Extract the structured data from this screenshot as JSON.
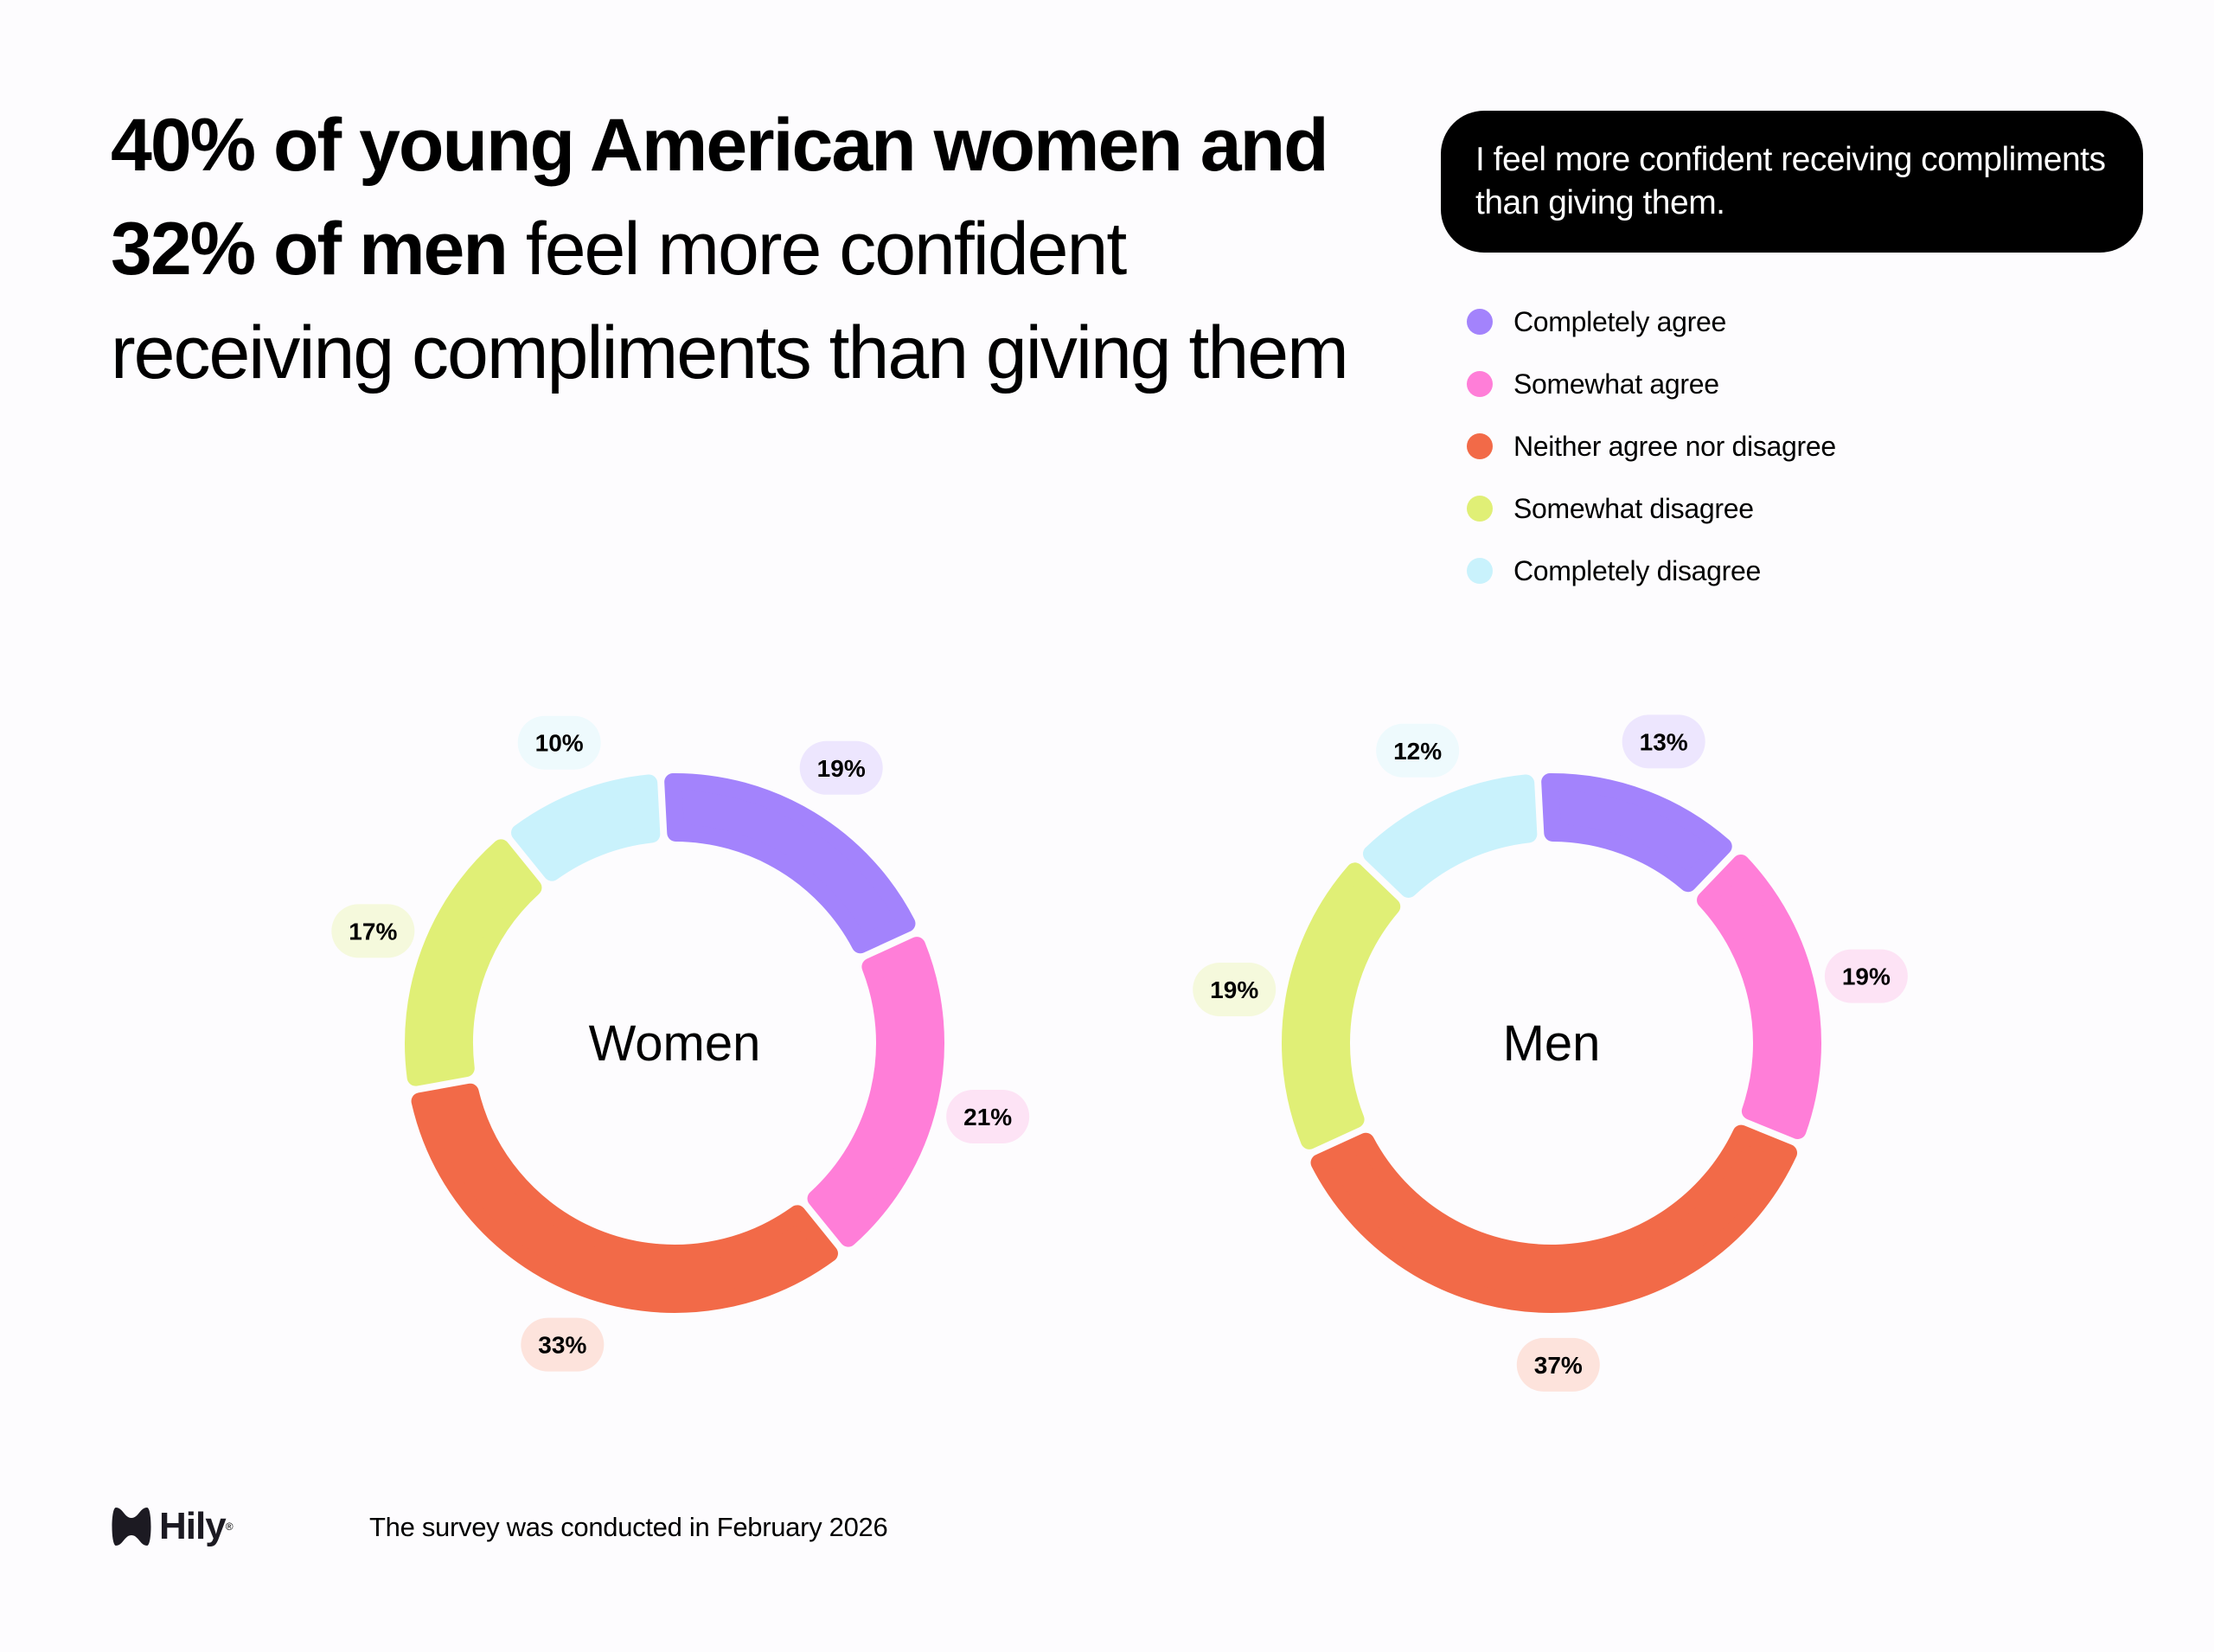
{
  "headline": {
    "bold": "40% of young American women and 32% of men",
    "regular": " feel more confident receiving compliments than giving them"
  },
  "question": "I feel more confident receiving compliments than giving them.",
  "legend": [
    {
      "label": "Completely agree",
      "color": "#a383fc"
    },
    {
      "label": "Somewhat agree",
      "color": "#ff7ed8"
    },
    {
      "label": "Neither agree nor disagree",
      "color": "#f26a48"
    },
    {
      "label": "Somewhat disagree",
      "color": "#e0ef76"
    },
    {
      "label": "Completely disagree",
      "color": "#c9f2fc"
    }
  ],
  "chart_data": [
    {
      "type": "pie",
      "title": "Women",
      "categories": [
        "Completely agree",
        "Somewhat agree",
        "Neither agree nor disagree",
        "Somewhat disagree",
        "Completely disagree"
      ],
      "values": [
        19,
        21,
        33,
        17,
        10
      ],
      "labels": [
        "19%",
        "21%",
        "33%",
        "17%",
        "10%"
      ]
    },
    {
      "type": "pie",
      "title": "Men",
      "categories": [
        "Completely agree",
        "Somewhat agree",
        "Neither agree nor disagree",
        "Somewhat disagree",
        "Completely disagree"
      ],
      "values": [
        13,
        19,
        37,
        19,
        12
      ],
      "labels": [
        "13%",
        "19%",
        "37%",
        "19%",
        "12%"
      ]
    }
  ],
  "label_tints": [
    "#ede6fe",
    "#fde3f5",
    "#fde3dc",
    "#f5f9dc",
    "#eefafd"
  ],
  "footer": {
    "brand": "Hily",
    "note": "The survey was conducted in February 2026"
  }
}
